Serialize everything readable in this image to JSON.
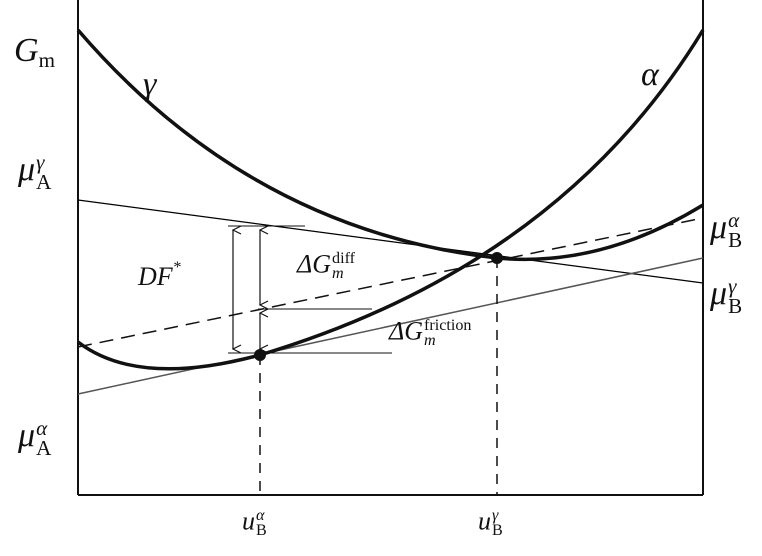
{
  "labels": {
    "gibbs_axis": {
      "symbol": "G",
      "sub": "m"
    },
    "phase_gamma": "γ",
    "phase_alpha": "α",
    "mu_A_gamma": {
      "symbol": "μ",
      "sub": "A",
      "sup": "γ"
    },
    "mu_A_alpha": {
      "symbol": "μ",
      "sub": "A",
      "sup": "α"
    },
    "mu_B_alpha": {
      "symbol": "μ",
      "sub": "B",
      "sup": "α"
    },
    "mu_B_gamma": {
      "symbol": "μ",
      "sub": "B",
      "sup": "γ"
    },
    "driving_force": {
      "text": "DF",
      "sup": "*"
    },
    "delta_g_diff": {
      "symbol": "ΔG",
      "sub": "m",
      "sup": "diff"
    },
    "delta_g_friction": {
      "symbol": "ΔG",
      "sub": "m",
      "sup": "friction"
    },
    "x_alpha": {
      "symbol": "u",
      "sub": "B",
      "sup": "α"
    },
    "x_gamma": {
      "symbol": "u",
      "sub": "B",
      "sup": "γ"
    }
  },
  "colors": {
    "curve": "#111111",
    "tangent_gamma": "#000000",
    "tangent_alpha": "#555555",
    "background": "#ffffff"
  }
}
